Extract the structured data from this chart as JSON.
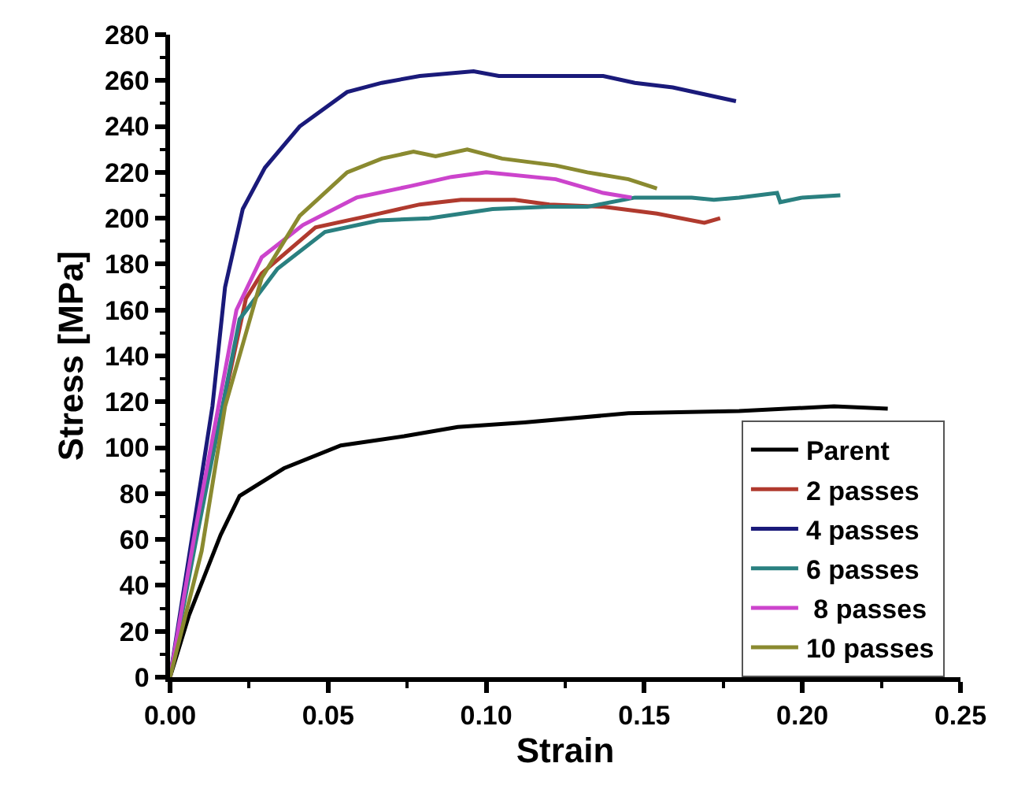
{
  "chart_data": {
    "type": "line",
    "xlabel": "Strain",
    "ylabel": "Stress [MPa]",
    "xlim": [
      0,
      0.25
    ],
    "ylim": [
      0,
      280
    ],
    "xticks": [
      {
        "value": 0,
        "label": "0.00"
      },
      0.05,
      {
        "value": 0.1,
        "label": "0.10"
      },
      0.15,
      {
        "value": 0.2,
        "label": "0.20"
      },
      0.25
    ],
    "yticks": [
      0,
      20,
      40,
      60,
      80,
      100,
      120,
      140,
      160,
      180,
      200,
      220,
      240,
      260,
      280
    ],
    "grid": false,
    "legend": "bottom right",
    "marker": "none",
    "line_style": "solid",
    "series": [
      {
        "name": "Parent",
        "color": "#000000",
        "x": [
          0,
          0.006,
          0.016,
          0.022,
          0.036,
          0.054,
          0.074,
          0.091,
          0.112,
          0.145,
          0.18,
          0.21,
          0.227
        ],
        "values": [
          0,
          27,
          62,
          79,
          91,
          101,
          105,
          109,
          111,
          115,
          116,
          118,
          117
        ]
      },
      {
        "name": "2 passes",
        "color": "#b03a2e",
        "x": [
          0,
          0.008,
          0.024,
          0.029,
          0.046,
          0.066,
          0.079,
          0.092,
          0.109,
          0.12,
          0.137,
          0.154,
          0.169,
          0.174
        ],
        "values": [
          0,
          62,
          165,
          176,
          196,
          202,
          206,
          208,
          208,
          206,
          205,
          202,
          198,
          200
        ]
      },
      {
        "name": "4 passes",
        "color": "#1a1a7a",
        "x": [
          0,
          0.008,
          0.0134,
          0.0174,
          0.023,
          0.03,
          0.041,
          0.056,
          0.067,
          0.079,
          0.096,
          0.104,
          0.137,
          0.147,
          0.159,
          0.169,
          0.179
        ],
        "values": [
          0,
          70,
          118,
          170,
          204,
          222,
          240,
          255,
          259,
          262,
          264,
          262,
          262,
          259,
          257,
          254,
          251
        ]
      },
      {
        "name": "6 passes",
        "color": "#2a8080",
        "x": [
          0,
          0.008,
          0.022,
          0.034,
          0.049,
          0.066,
          0.082,
          0.102,
          0.12,
          0.132,
          0.147,
          0.165,
          0.172,
          0.18,
          0.192,
          0.193,
          0.2,
          0.212
        ],
        "values": [
          0,
          58,
          156,
          178,
          194,
          199,
          200,
          204,
          205,
          205,
          209,
          209,
          208,
          209,
          211,
          207,
          209,
          210
        ]
      },
      {
        "name": " 8 passes",
        "color": "#cc44cc",
        "x": [
          0,
          0.008,
          0.021,
          0.029,
          0.042,
          0.059,
          0.076,
          0.089,
          0.1,
          0.122,
          0.137,
          0.146
        ],
        "values": [
          0,
          64,
          160,
          183,
          197,
          209,
          214,
          218,
          220,
          217,
          211,
          209
        ]
      },
      {
        "name": "10 passes",
        "color": "#8a8a30",
        "x": [
          0,
          0.01,
          0.0174,
          0.029,
          0.041,
          0.056,
          0.067,
          0.077,
          0.084,
          0.094,
          0.105,
          0.122,
          0.132,
          0.145,
          0.154
        ],
        "values": [
          0,
          55,
          118,
          174,
          201,
          220,
          226,
          229,
          227,
          230,
          226,
          223,
          220,
          217,
          213
        ]
      }
    ]
  }
}
